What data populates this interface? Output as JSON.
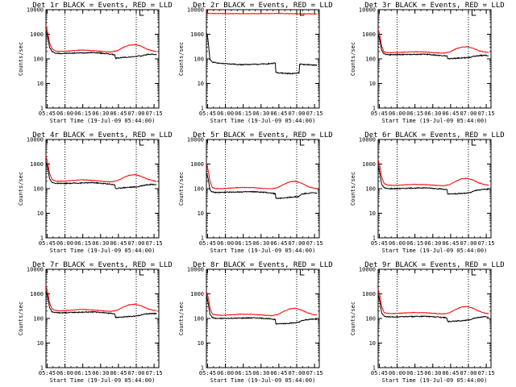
{
  "colors": {
    "events": "#000000",
    "lld": "#ff0000",
    "background": "#ffffff"
  },
  "common": {
    "xlabel": "Start Time (19-Jul-09 05:44:00)",
    "ylabel": "Counts/sec",
    "x_tick_labels": [
      "05:45",
      "06:00",
      "06:15",
      "06:30",
      "06:45",
      "07:00",
      "07:15"
    ],
    "y_tick_labels": [
      "1",
      "10",
      "100",
      "1000",
      "10000"
    ]
  },
  "chart_data": [
    {
      "type": "line",
      "title": "Det 1r BLACK = Events, RED = LLD",
      "xlabel": "Start Time (19-Jul-09 05:44:00)",
      "ylabel": "Counts/sec",
      "y_scale": "log",
      "ylim": [
        1,
        10000
      ],
      "x_minutes": [
        0,
        95
      ],
      "series": [
        {
          "key": "events",
          "x": [
            0,
            1,
            2,
            3,
            5,
            8,
            12,
            20,
            30,
            40,
            50,
            55,
            58,
            58.5,
            65,
            72,
            78,
            80,
            85,
            90,
            93
          ],
          "values": [
            1500,
            1000,
            600,
            300,
            200,
            170,
            165,
            170,
            175,
            180,
            165,
            155,
            145,
            105,
            115,
            120,
            130,
            130,
            150,
            155,
            145
          ]
        },
        {
          "key": "lld",
          "x": [
            0,
            1,
            2,
            3,
            5,
            8,
            12,
            20,
            30,
            40,
            50,
            55,
            60,
            65,
            70,
            75,
            80,
            85,
            90,
            93
          ],
          "values": [
            2200,
            1500,
            900,
            450,
            260,
            210,
            200,
            210,
            230,
            215,
            195,
            190,
            215,
            290,
            360,
            380,
            330,
            250,
            210,
            200
          ]
        }
      ]
    },
    {
      "type": "line",
      "title": "Det 2r BLACK = Events, RED = LLD",
      "xlabel": "Start Time (19-Jul-09 05:44:00)",
      "ylabel": "Counts/sec",
      "y_scale": "log",
      "ylim": [
        1,
        10000
      ],
      "x_minutes": [
        0,
        95
      ],
      "series": [
        {
          "key": "events",
          "x": [
            0,
            1,
            2,
            3,
            5,
            8,
            12,
            20,
            30,
            40,
            50,
            55,
            58,
            58.5,
            65,
            72,
            78,
            78.5,
            85,
            90,
            93
          ],
          "values": [
            1200,
            800,
            300,
            90,
            75,
            70,
            65,
            62,
            58,
            60,
            62,
            65,
            68,
            28,
            26,
            25,
            27,
            60,
            58,
            56,
            55
          ]
        },
        {
          "key": "lld",
          "x": [
            0,
            1,
            2,
            5,
            10,
            20,
            40,
            60,
            80,
            93
          ],
          "values": [
            9000,
            7500,
            7000,
            7000,
            7000,
            6900,
            6900,
            7000,
            6800,
            6700
          ]
        }
      ]
    },
    {
      "type": "line",
      "title": "Det 3r BLACK = Events, RED = LLD",
      "xlabel": "Start Time (19-Jul-09 05:44:00)",
      "ylabel": "Counts/sec",
      "y_scale": "log",
      "ylim": [
        1,
        10000
      ],
      "x_minutes": [
        0,
        95
      ],
      "series": [
        {
          "key": "events",
          "x": [
            0,
            1,
            2,
            3,
            5,
            8,
            12,
            20,
            30,
            40,
            50,
            55,
            58,
            58.5,
            65,
            72,
            78,
            80,
            85,
            90,
            93
          ],
          "values": [
            1000,
            700,
            400,
            220,
            160,
            150,
            148,
            150,
            152,
            155,
            140,
            135,
            130,
            100,
            105,
            110,
            115,
            125,
            135,
            140,
            135
          ]
        },
        {
          "key": "lld",
          "x": [
            0,
            1,
            2,
            3,
            5,
            8,
            12,
            20,
            30,
            40,
            50,
            55,
            60,
            65,
            70,
            75,
            80,
            85,
            90,
            93
          ],
          "values": [
            1600,
            1100,
            650,
            330,
            190,
            180,
            180,
            185,
            195,
            190,
            175,
            170,
            190,
            250,
            300,
            310,
            270,
            210,
            190,
            180
          ]
        }
      ]
    },
    {
      "type": "line",
      "title": "Det 4r BLACK = Events, RED = LLD",
      "xlabel": "Start Time (19-Jul-09 05:44:00)",
      "ylabel": "Counts/sec",
      "y_scale": "log",
      "ylim": [
        1,
        10000
      ],
      "x_minutes": [
        0,
        95
      ],
      "series": [
        {
          "key": "events",
          "x": [
            0,
            1,
            2,
            3,
            5,
            8,
            12,
            20,
            30,
            40,
            50,
            55,
            58,
            58.5,
            65,
            72,
            78,
            80,
            85,
            90,
            93
          ],
          "values": [
            1300,
            900,
            500,
            260,
            180,
            165,
            162,
            165,
            170,
            175,
            160,
            150,
            145,
            100,
            110,
            115,
            120,
            130,
            145,
            150,
            145
          ]
        },
        {
          "key": "lld",
          "x": [
            0,
            1,
            2,
            3,
            5,
            8,
            12,
            20,
            30,
            40,
            50,
            55,
            60,
            65,
            70,
            75,
            80,
            85,
            90,
            93
          ],
          "values": [
            2000,
            1400,
            850,
            420,
            240,
            205,
            200,
            210,
            230,
            215,
            195,
            190,
            210,
            280,
            350,
            370,
            320,
            250,
            210,
            200
          ]
        }
      ]
    },
    {
      "type": "line",
      "title": "Det 5r BLACK = Events, RED = LLD",
      "xlabel": "Start Time (19-Jul-09 05:44:00)",
      "ylabel": "Counts/sec",
      "y_scale": "log",
      "ylim": [
        1,
        10000
      ],
      "x_minutes": [
        0,
        95
      ],
      "series": [
        {
          "key": "events",
          "x": [
            0,
            1,
            2,
            3,
            5,
            8,
            12,
            20,
            30,
            40,
            50,
            55,
            58,
            58.5,
            65,
            72,
            78,
            80,
            85,
            90,
            93
          ],
          "values": [
            450,
            320,
            180,
            90,
            72,
            70,
            70,
            72,
            74,
            75,
            70,
            66,
            62,
            40,
            42,
            45,
            48,
            60,
            65,
            68,
            65
          ]
        },
        {
          "key": "lld",
          "x": [
            0,
            1,
            2,
            3,
            5,
            8,
            12,
            20,
            30,
            40,
            50,
            55,
            60,
            65,
            70,
            75,
            80,
            85,
            90,
            93
          ],
          "values": [
            1000,
            700,
            420,
            200,
            110,
            100,
            100,
            105,
            112,
            110,
            100,
            98,
            110,
            150,
            190,
            200,
            170,
            125,
            105,
            100
          ]
        }
      ]
    },
    {
      "type": "line",
      "title": "Det 6r BLACK = Events, RED = LLD",
      "xlabel": "Start Time (19-Jul-09 05:44:00)",
      "ylabel": "Counts/sec",
      "y_scale": "log",
      "ylim": [
        1,
        10000
      ],
      "x_minutes": [
        0,
        95
      ],
      "series": [
        {
          "key": "events",
          "x": [
            0,
            1,
            2,
            3,
            5,
            8,
            12,
            20,
            30,
            40,
            50,
            55,
            58,
            58.5,
            65,
            72,
            78,
            80,
            85,
            90,
            93
          ],
          "values": [
            800,
            550,
            300,
            150,
            110,
            100,
            100,
            102,
            105,
            108,
            100,
            95,
            90,
            60,
            62,
            65,
            70,
            80,
            90,
            95,
            92
          ]
        },
        {
          "key": "lld",
          "x": [
            0,
            1,
            2,
            3,
            5,
            8,
            12,
            20,
            30,
            40,
            50,
            55,
            60,
            65,
            70,
            75,
            80,
            85,
            90,
            93
          ],
          "values": [
            1500,
            1000,
            600,
            300,
            160,
            140,
            135,
            140,
            150,
            145,
            135,
            130,
            145,
            195,
            250,
            265,
            225,
            170,
            145,
            140
          ]
        }
      ]
    },
    {
      "type": "line",
      "title": "Det 7r BLACK = Events, RED = LLD",
      "xlabel": "Start Time (19-Jul-09 05:44:00)",
      "ylabel": "Counts/sec",
      "y_scale": "log",
      "ylim": [
        1,
        10000
      ],
      "x_minutes": [
        0,
        95
      ],
      "series": [
        {
          "key": "events",
          "x": [
            0,
            1,
            2,
            3,
            5,
            8,
            12,
            20,
            30,
            40,
            50,
            55,
            58,
            58.5,
            65,
            72,
            78,
            80,
            85,
            90,
            93
          ],
          "values": [
            1400,
            950,
            550,
            280,
            190,
            175,
            170,
            175,
            180,
            185,
            170,
            160,
            150,
            110,
            115,
            120,
            130,
            140,
            155,
            160,
            155
          ]
        },
        {
          "key": "lld",
          "x": [
            0,
            1,
            2,
            3,
            5,
            8,
            12,
            20,
            30,
            40,
            50,
            55,
            60,
            65,
            70,
            75,
            80,
            85,
            90,
            93
          ],
          "values": [
            2100,
            1450,
            880,
            440,
            250,
            210,
            205,
            215,
            235,
            220,
            200,
            195,
            215,
            290,
            360,
            380,
            330,
            255,
            215,
            205
          ]
        }
      ]
    },
    {
      "type": "line",
      "title": "Det 8r BLACK = Events, RED = LLD",
      "xlabel": "Start Time (19-Jul-09 05:44:00)",
      "ylabel": "Counts/sec",
      "y_scale": "log",
      "ylim": [
        1,
        10000
      ],
      "x_minutes": [
        0,
        95
      ],
      "series": [
        {
          "key": "events",
          "x": [
            0,
            1,
            2,
            3,
            5,
            8,
            12,
            20,
            30,
            40,
            50,
            55,
            58,
            58.5,
            65,
            72,
            78,
            80,
            85,
            90,
            93
          ],
          "values": [
            800,
            550,
            300,
            150,
            110,
            100,
            100,
            102,
            104,
            106,
            100,
            95,
            90,
            60,
            62,
            65,
            70,
            80,
            90,
            95,
            92
          ]
        },
        {
          "key": "lld",
          "x": [
            0,
            1,
            2,
            3,
            5,
            8,
            12,
            20,
            30,
            40,
            50,
            55,
            60,
            65,
            70,
            75,
            80,
            85,
            90,
            93
          ],
          "values": [
            1300,
            900,
            550,
            270,
            150,
            140,
            135,
            140,
            150,
            145,
            135,
            130,
            145,
            195,
            245,
            260,
            220,
            170,
            145,
            140
          ]
        }
      ]
    },
    {
      "type": "line",
      "title": "Det 9r BLACK = Events, RED = LLD",
      "xlabel": "Start Time (19-Jul-09 05:44:00)",
      "ylabel": "Counts/sec",
      "y_scale": "log",
      "ylim": [
        1,
        10000
      ],
      "x_minutes": [
        0,
        95
      ],
      "series": [
        {
          "key": "events",
          "x": [
            0,
            1,
            2,
            3,
            5,
            8,
            12,
            20,
            30,
            40,
            50,
            55,
            58,
            58.5,
            65,
            72,
            78,
            80,
            85,
            90,
            93
          ],
          "values": [
            900,
            620,
            340,
            170,
            125,
            115,
            115,
            118,
            120,
            122,
            115,
            110,
            105,
            75,
            78,
            82,
            88,
            100,
            112,
            118,
            115
          ]
        },
        {
          "key": "lld",
          "x": [
            0,
            1,
            2,
            3,
            5,
            8,
            12,
            20,
            30,
            40,
            50,
            55,
            60,
            65,
            70,
            75,
            80,
            85,
            90,
            93
          ],
          "values": [
            1500,
            1050,
            620,
            310,
            175,
            160,
            158,
            165,
            175,
            170,
            158,
            152,
            170,
            230,
            290,
            305,
            260,
            195,
            165,
            158
          ]
        }
      ]
    }
  ]
}
